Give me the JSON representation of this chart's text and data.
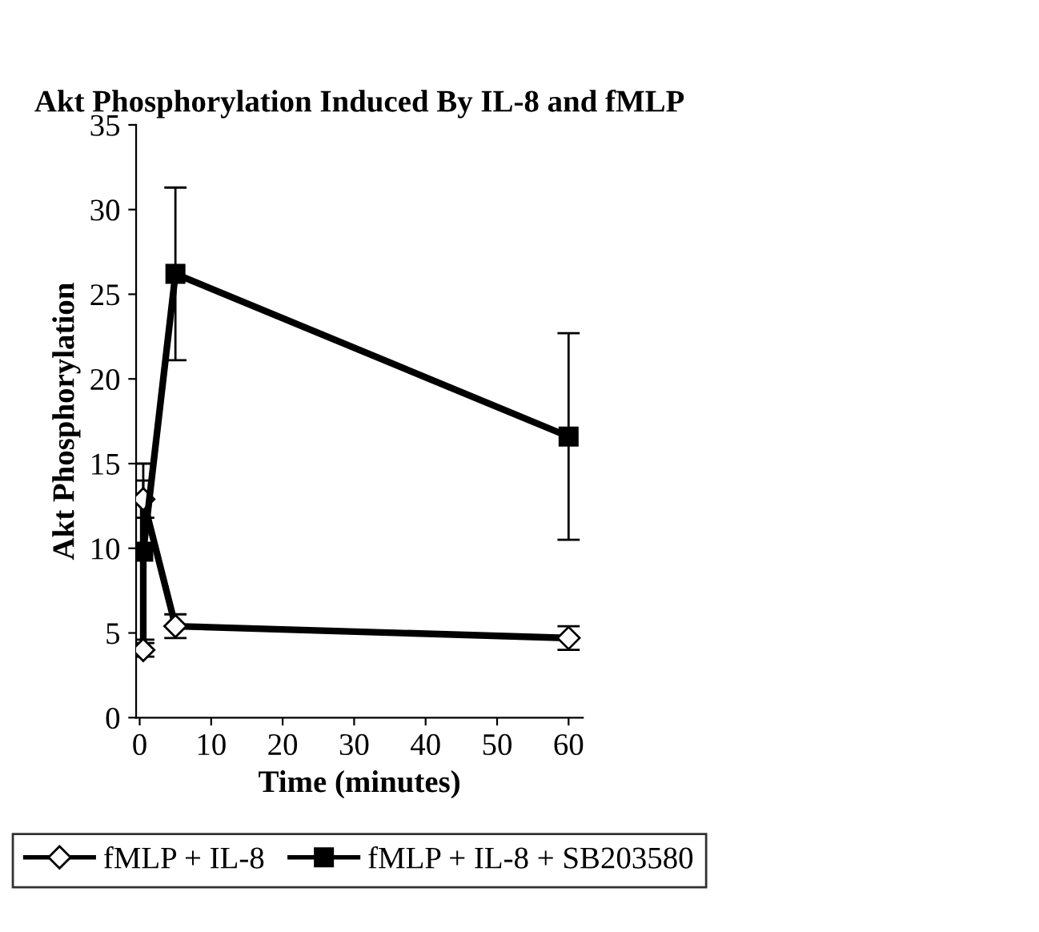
{
  "chart_data": {
    "type": "line",
    "title": "Akt Phosphorylation Induced By IL-8 and fMLP",
    "xlabel": "Time (minutes)",
    "ylabel": "Akt Phosphorylation",
    "series": [
      {
        "name": "fMLP + IL-8",
        "color": "#000000",
        "x": [
          0.5,
          0.5,
          5,
          60
        ],
        "values": [
          4.0,
          12.9,
          5.4,
          4.7
        ],
        "errors": [
          0.4,
          1.1,
          0.7,
          0.7
        ],
        "marker": "diamond"
      },
      {
        "name": "fMLP + IL-8 + SB203580",
        "color": "#000000",
        "x": [
          0.5,
          5,
          60
        ],
        "values": [
          9.8,
          26.2,
          16.6
        ],
        "errors": [
          5.2,
          5.1,
          6.1
        ],
        "marker": "square"
      }
    ],
    "xlim": [
      -0.5,
      62
    ],
    "xticks": [
      0,
      10,
      20,
      30,
      40,
      50,
      60
    ],
    "ylim": [
      0,
      35
    ],
    "yticks": [
      0,
      5,
      10,
      15,
      20,
      25,
      30,
      35
    ],
    "grid": false,
    "legend": "bottom",
    "line_style": "solid"
  }
}
